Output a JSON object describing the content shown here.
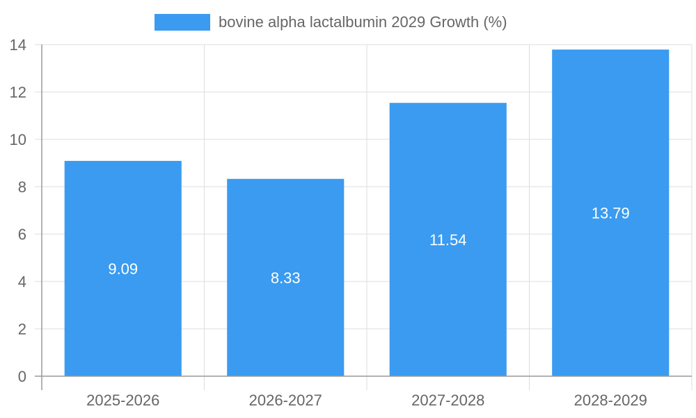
{
  "chart_data": {
    "type": "bar",
    "categories": [
      "2025-2026",
      "2026-2027",
      "2027-2028",
      "2028-2029"
    ],
    "series": [
      {
        "name": "bovine alpha lactalbumin 2029 Growth (%)",
        "values": [
          9.09,
          8.33,
          11.54,
          13.79
        ]
      }
    ],
    "data_labels": [
      "9.09",
      "8.33",
      "11.54",
      "13.79"
    ],
    "ylim": [
      0,
      14
    ],
    "yticks": [
      0,
      2,
      4,
      6,
      8,
      10,
      12,
      14
    ],
    "grid": true,
    "legend_position": "top-center",
    "colors": {
      "bar": "#3a9bf0",
      "grid": "#dddddd",
      "axis": "#999999",
      "text": "#666666"
    }
  }
}
